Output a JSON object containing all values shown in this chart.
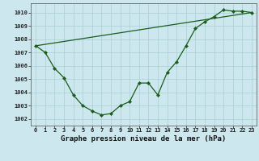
{
  "line1_x": [
    0,
    1,
    2,
    3,
    4,
    5,
    6,
    7,
    8,
    9,
    10,
    11,
    12,
    13,
    14,
    15,
    16,
    17,
    18,
    19,
    20,
    21,
    22,
    23
  ],
  "line1_y": [
    1007.5,
    1007.0,
    1005.8,
    1005.1,
    1003.8,
    1003.0,
    1002.6,
    1002.3,
    1002.4,
    1003.0,
    1003.3,
    1004.7,
    1004.7,
    1003.8,
    1005.5,
    1006.3,
    1007.5,
    1008.8,
    1009.3,
    1009.7,
    1010.2,
    1010.1,
    1010.1,
    1010.0
  ],
  "line2_x": [
    0,
    23
  ],
  "line2_y": [
    1007.5,
    1010.0
  ],
  "ylabel_ticks": [
    1002,
    1003,
    1004,
    1005,
    1006,
    1007,
    1008,
    1009,
    1010
  ],
  "ylim": [
    1001.5,
    1010.7
  ],
  "xlim": [
    -0.5,
    23.5
  ],
  "line_color": "#1a5c1a",
  "bg_color": "#cce8ee",
  "grid_color": "#aacdd5",
  "xlabel": "Graphe pression niveau de la mer (hPa)",
  "tick_fontsize": 5.0,
  "label_fontsize": 6.5
}
